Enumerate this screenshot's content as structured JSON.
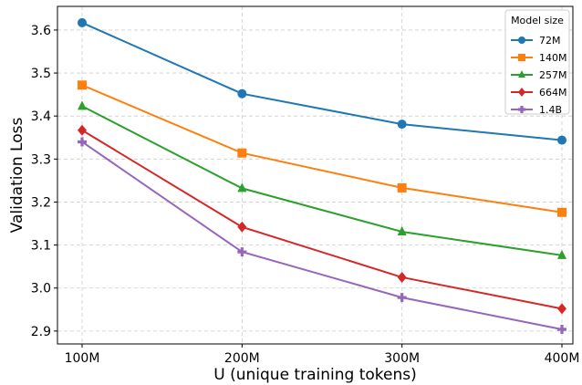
{
  "chart_data": {
    "type": "line",
    "xlabel": "U (unique training tokens)",
    "ylabel": "Validation Loss",
    "x_categories": [
      "100M",
      "200M",
      "300M",
      "400M"
    ],
    "ylim": [
      2.87,
      3.655
    ],
    "yticks": [
      "2.9",
      "3.0",
      "3.1",
      "3.2",
      "3.3",
      "3.4",
      "3.5",
      "3.6"
    ],
    "grid": true,
    "legend": {
      "title": "Model size",
      "placement": "top-right"
    },
    "series": [
      {
        "name": "72M",
        "color": "#1f77b4",
        "marker": "circle",
        "values": [
          3.617,
          3.452,
          3.381,
          3.344
        ]
      },
      {
        "name": "140M",
        "color": "#ff7f0e",
        "marker": "square",
        "values": [
          3.472,
          3.314,
          3.233,
          3.176
        ]
      },
      {
        "name": "257M",
        "color": "#2ca02c",
        "marker": "triangle",
        "values": [
          3.423,
          3.232,
          3.131,
          3.076
        ]
      },
      {
        "name": "664M",
        "color": "#d62728",
        "marker": "diamond",
        "values": [
          3.367,
          3.142,
          3.025,
          2.952
        ]
      },
      {
        "name": "1.4B",
        "color": "#9467bd",
        "marker": "plus",
        "values": [
          3.34,
          3.084,
          2.978,
          2.904
        ]
      }
    ]
  }
}
